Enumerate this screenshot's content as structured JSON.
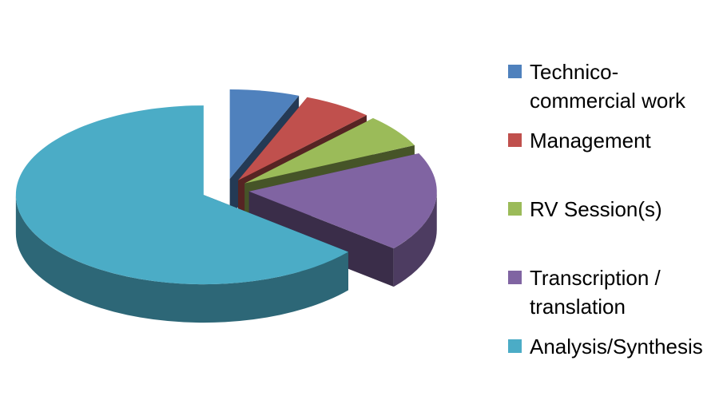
{
  "chart_data": {
    "type": "pie",
    "categories": [
      "Technico-commercial work",
      "Management",
      "RV Session(s)",
      "Transcription / translation",
      "Analysis/Synthesis"
    ],
    "values": [
      6,
      6,
      6,
      18,
      64
    ],
    "colors": [
      "#4f81bd",
      "#c0504d",
      "#9bbb59",
      "#8064a2",
      "#4bacc6"
    ],
    "legend": "right"
  }
}
